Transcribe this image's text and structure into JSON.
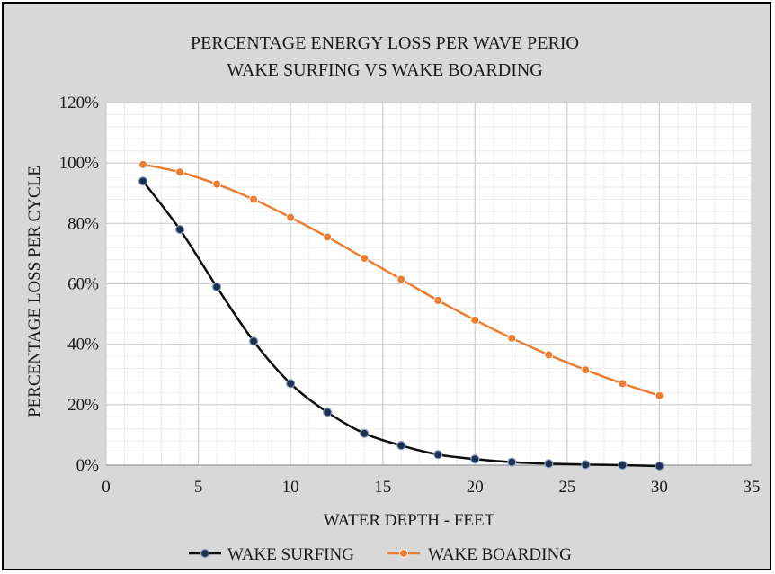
{
  "chart_data": {
    "type": "line",
    "title_lines": [
      "PERCENTAGE ENERGY LOSS PER WAVE PERIO",
      "WAKE SURFING VS WAKE BOARDING"
    ],
    "xlabel": "WATER DEPTH - FEET",
    "ylabel": "PERCENTAGE LOSS PER CYCLE",
    "xlim": [
      0,
      35
    ],
    "ylim": [
      0,
      120
    ],
    "x_ticks": [
      0,
      5,
      10,
      15,
      20,
      25,
      30,
      35
    ],
    "x_tick_labels": [
      "0",
      "5",
      "10",
      "15",
      "20",
      "25",
      "30",
      "35"
    ],
    "y_ticks": [
      0,
      20,
      40,
      60,
      80,
      100,
      120
    ],
    "y_tick_labels": [
      "0%",
      "20%",
      "40%",
      "60%",
      "80%",
      "100%",
      "120%"
    ],
    "grid": true,
    "legend_position": "bottom-center",
    "x": [
      2,
      4,
      6,
      8,
      10,
      12,
      14,
      16,
      18,
      20,
      22,
      24,
      26,
      28,
      30
    ],
    "series": [
      {
        "name": "WAKE SURFING",
        "color": "#0d0d0d",
        "marker_color": "#1f2f4f",
        "values": [
          94,
          78,
          59,
          41,
          27,
          17.5,
          10.5,
          6.5,
          3.5,
          2,
          1,
          0.5,
          0.2,
          0,
          -0.3
        ]
      },
      {
        "name": "WAKE BOARDING",
        "color": "#ed7d31",
        "marker_color": "#ed7d31",
        "values": [
          99.5,
          97,
          93,
          88,
          82,
          75.5,
          68.5,
          61.5,
          54.5,
          48,
          42,
          36.5,
          31.5,
          27,
          23
        ]
      }
    ]
  }
}
